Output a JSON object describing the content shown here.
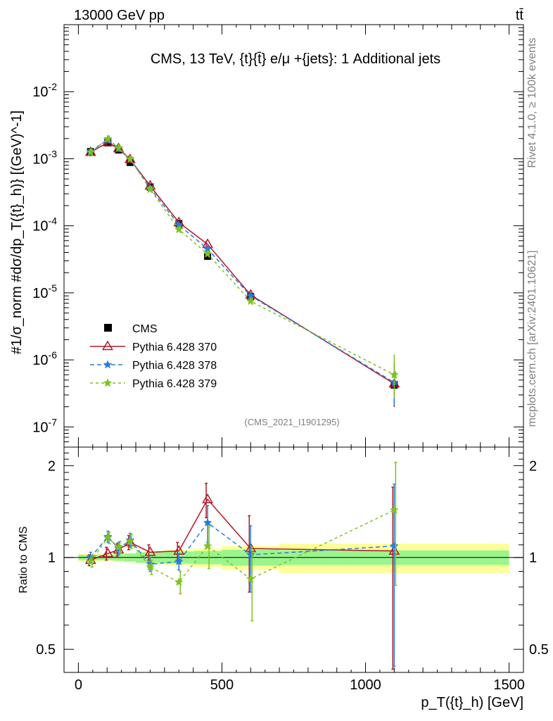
{
  "header": {
    "beam": "13000 GeV pp",
    "process": "tt̄",
    "side_top": "Rivet 4.1.0, ≥ 100k events",
    "side_bottom": "mcplots.cern.ch [arXiv:2401.10621]"
  },
  "chart_data": {
    "type": "line",
    "title": "CMS, 13 TeV, {t}{t̄} e/μ +{jets}: 1 Additional jets",
    "analysis_id": "(CMS_2021_I1901295)",
    "xlabel": "p_T({t}_h) [GeV]",
    "ylabel_main": "#1/σ_norm #dσ/dp_T({t}_h)} [(GeV)^-1]",
    "ylabel_ratio": "Ratio to CMS",
    "xlim": [
      -50,
      1550
    ],
    "ylim_main": [
      5e-08,
      0.1
    ],
    "ylim_ratio": [
      0.42,
      2.3
    ],
    "x_ticks": [
      0,
      500,
      1000,
      1500
    ],
    "y_ticks_main": [
      "10^-7",
      "10^-6",
      "10^-5",
      "10^-4",
      "10^-3",
      "10^-2"
    ],
    "y_ticks_ratio": [
      "0.5",
      "1",
      "2"
    ],
    "bin_edges": [
      0,
      85,
      120,
      160,
      200,
      300,
      400,
      500,
      700,
      1500
    ],
    "x": [
      42.5,
      102.5,
      140,
      180,
      250,
      350,
      450,
      600,
      1100
    ],
    "data": {
      "name": "CMS",
      "values": [
        0.00128,
        0.00172,
        0.00135,
        0.00088,
        0.00038,
        0.000108,
        3.5e-05,
        8.8e-06,
        4.2e-07
      ]
    },
    "band_inner": [
      0.02,
      0.02,
      0.025,
      0.03,
      0.04,
      0.045,
      0.05,
      0.06,
      0.055
    ],
    "band_outer": [
      0.03,
      0.025,
      0.03,
      0.035,
      0.045,
      0.06,
      0.07,
      0.09,
      0.11
    ],
    "series": [
      {
        "name": "Pythia 6.428 370",
        "color": "#b2182b",
        "marker": "triangle",
        "dash": "solid",
        "values": [
          0.00125,
          0.00175,
          0.00142,
          0.00098,
          0.000395,
          0.000112,
          5.3e-05,
          9.3e-06,
          4.4e-07
        ],
        "ratio": [
          0.98,
          1.03,
          1.06,
          1.12,
          1.04,
          1.05,
          1.55,
          1.07,
          1.05
        ],
        "ratio_err": [
          0.04,
          0.05,
          0.05,
          0.06,
          0.06,
          0.07,
          0.2,
          0.3,
          0.65
        ]
      },
      {
        "name": "Pythia 6.428 378",
        "color": "#2c7bd9",
        "marker": "star",
        "dash": "6,4",
        "values": [
          0.00129,
          0.00192,
          0.00143,
          0.001,
          0.000365,
          0.000103,
          4.5e-05,
          9e-06,
          4.6e-07
        ],
        "ratio": [
          1.0,
          1.17,
          1.07,
          1.14,
          0.95,
          0.97,
          1.3,
          1.02,
          1.09
        ],
        "ratio_err": [
          0.04,
          0.05,
          0.05,
          0.06,
          0.05,
          0.06,
          0.18,
          0.25,
          0.65
        ]
      },
      {
        "name": "Pythia 6.428 379",
        "color": "#7dc21e",
        "marker": "star",
        "dash": "4,4",
        "values": [
          0.00125,
          0.00198,
          0.00145,
          0.00099,
          0.00035,
          8.8e-05,
          3.8e-05,
          7.5e-06,
          6e-07
        ],
        "ratio": [
          0.97,
          1.16,
          1.08,
          1.13,
          0.93,
          0.83,
          1.09,
          0.85,
          1.43
        ],
        "ratio_err": [
          0.04,
          0.05,
          0.05,
          0.06,
          0.05,
          0.07,
          0.17,
          0.23,
          0.62
        ]
      }
    ]
  }
}
